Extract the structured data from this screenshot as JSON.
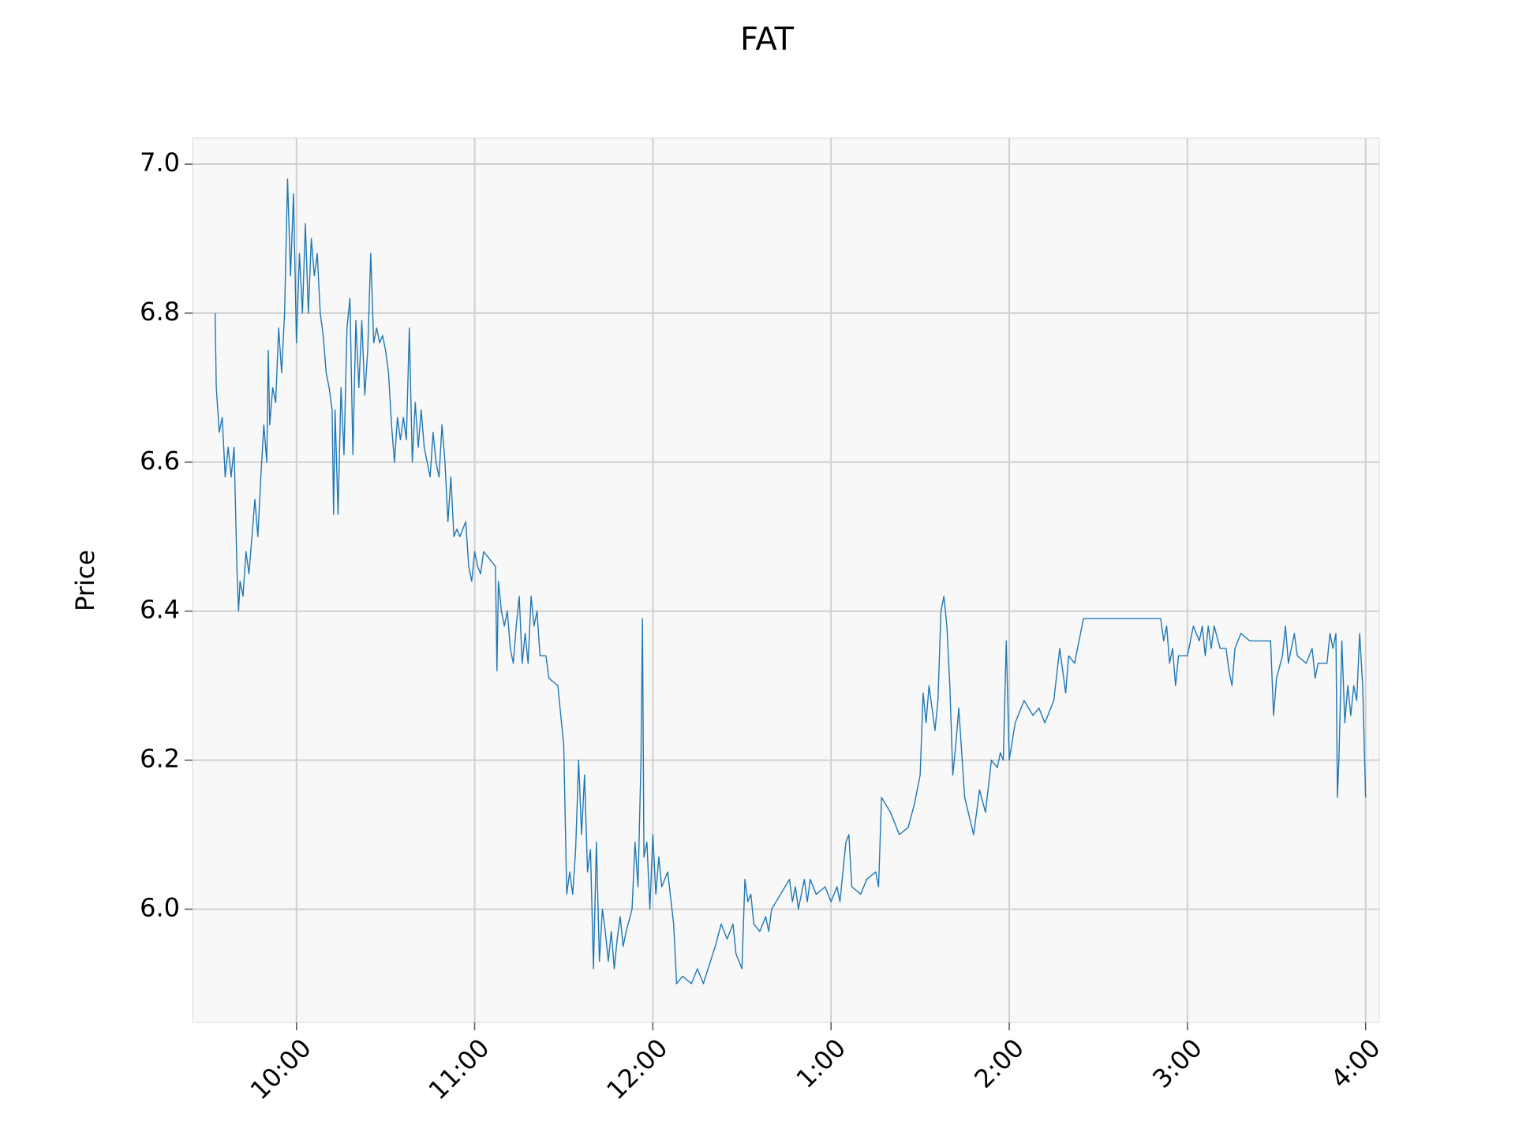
{
  "chart_data": {
    "type": "line",
    "title": "FAT",
    "y_label": "Price",
    "grid": true,
    "xlim": [
      565,
      964.6
    ],
    "ylim": [
      5.848,
      7.035
    ],
    "xticks": [
      {
        "value": 600,
        "label": "10:00"
      },
      {
        "value": 660,
        "label": "11:00"
      },
      {
        "value": 720,
        "label": "12:00"
      },
      {
        "value": 780,
        "label": "1:00"
      },
      {
        "value": 840,
        "label": "2:00"
      },
      {
        "value": 900,
        "label": "3:00"
      },
      {
        "value": 960,
        "label": "4:00"
      }
    ],
    "yticks": [
      {
        "value": 6,
        "label": "6.0"
      },
      6.2,
      6.4,
      6.6,
      6.8,
      {
        "value": 7,
        "label": "7.0"
      }
    ],
    "series": [
      {
        "color": "#1f77b4",
        "x": [
          572.6,
          573,
          574,
          575,
          576,
          577,
          578,
          579,
          580,
          580.5,
          581,
          582,
          583,
          584,
          585,
          586,
          587,
          588,
          589,
          590,
          590.5,
          591,
          592,
          593,
          594,
          595,
          596,
          597,
          598,
          599,
          600,
          601,
          602,
          603,
          604,
          605,
          606,
          607,
          608,
          609,
          610,
          611,
          612,
          612.5,
          613,
          614,
          615,
          616,
          617,
          618,
          619,
          620,
          621,
          622,
          623,
          624,
          625,
          626,
          627,
          628,
          629,
          630,
          631,
          632,
          633,
          634,
          635,
          636,
          637,
          638,
          639,
          640,
          641,
          642,
          643,
          644,
          645,
          646,
          647,
          648,
          649,
          650,
          651,
          652,
          653,
          654,
          655,
          657,
          658,
          659,
          660,
          661,
          662,
          663,
          665,
          667,
          667.5,
          668,
          669,
          670,
          671,
          672,
          673,
          674,
          675,
          676,
          677,
          678,
          679,
          680,
          681,
          682,
          684,
          685,
          688,
          690,
          691,
          692,
          693,
          694,
          695,
          696,
          697,
          698,
          699,
          700,
          701,
          702,
          703,
          704,
          705,
          706,
          707,
          708,
          709,
          710,
          711,
          713,
          714,
          715,
          716,
          716.5,
          717,
          718,
          719,
          720,
          721,
          722,
          723,
          725,
          727,
          728,
          730,
          733,
          735,
          737,
          741,
          743,
          745,
          747,
          748,
          750,
          751,
          752,
          753,
          754,
          756,
          758,
          759,
          760,
          763,
          766,
          767,
          768,
          769,
          771,
          772,
          773,
          775,
          778,
          780,
          782,
          783,
          785,
          786,
          787,
          790,
          792,
          795,
          796,
          797,
          800,
          803,
          806,
          808,
          810,
          811,
          812,
          813,
          815,
          816,
          817,
          818,
          819,
          820,
          821,
          822,
          823,
          825,
          828,
          830,
          832,
          834,
          836,
          837,
          838,
          839,
          840,
          842,
          845,
          848,
          850,
          852,
          855,
          857,
          858,
          859,
          860,
          862,
          863,
          865,
          875,
          885,
          891,
          892,
          893,
          894,
          895,
          896,
          897,
          900,
          902,
          904,
          905,
          906,
          907,
          908,
          909,
          911,
          913,
          914,
          915,
          916,
          918,
          921,
          924,
          928,
          929,
          930,
          932,
          933,
          934,
          936,
          937,
          940,
          942,
          943,
          944,
          947,
          948,
          949,
          950,
          950.5,
          951,
          952,
          953,
          954,
          955,
          956,
          957,
          958,
          959,
          960
        ],
        "values": [
          6.8,
          6.7,
          6.64,
          6.66,
          6.58,
          6.62,
          6.58,
          6.62,
          6.45,
          6.4,
          6.44,
          6.42,
          6.48,
          6.45,
          6.5,
          6.55,
          6.5,
          6.58,
          6.65,
          6.6,
          6.75,
          6.65,
          6.7,
          6.68,
          6.78,
          6.72,
          6.8,
          6.98,
          6.85,
          6.96,
          6.76,
          6.88,
          6.8,
          6.92,
          6.8,
          6.9,
          6.85,
          6.88,
          6.8,
          6.77,
          6.72,
          6.7,
          6.67,
          6.53,
          6.67,
          6.53,
          6.7,
          6.61,
          6.78,
          6.82,
          6.61,
          6.79,
          6.7,
          6.79,
          6.69,
          6.75,
          6.88,
          6.76,
          6.78,
          6.76,
          6.77,
          6.75,
          6.72,
          6.65,
          6.6,
          6.66,
          6.63,
          6.66,
          6.63,
          6.78,
          6.6,
          6.68,
          6.62,
          6.67,
          6.62,
          6.6,
          6.58,
          6.64,
          6.6,
          6.58,
          6.65,
          6.6,
          6.52,
          6.58,
          6.5,
          6.51,
          6.5,
          6.52,
          6.46,
          6.44,
          6.48,
          6.46,
          6.45,
          6.48,
          6.47,
          6.46,
          6.32,
          6.44,
          6.4,
          6.38,
          6.4,
          6.35,
          6.33,
          6.38,
          6.42,
          6.33,
          6.37,
          6.33,
          6.42,
          6.38,
          6.4,
          6.34,
          6.34,
          6.31,
          6.3,
          6.22,
          6.02,
          6.05,
          6.02,
          6.08,
          6.2,
          6.1,
          6.18,
          6.05,
          6.08,
          5.92,
          6.09,
          5.93,
          6.0,
          5.97,
          5.93,
          5.97,
          5.92,
          5.96,
          5.99,
          5.95,
          5.97,
          6.0,
          6.09,
          6.03,
          6.2,
          6.39,
          6.07,
          6.09,
          6.0,
          6.1,
          6.02,
          6.07,
          6.03,
          6.05,
          5.98,
          5.9,
          5.91,
          5.9,
          5.92,
          5.9,
          5.95,
          5.98,
          5.96,
          5.98,
          5.94,
          5.92,
          6.04,
          6.01,
          6.02,
          5.98,
          5.97,
          5.99,
          5.97,
          6.0,
          6.02,
          6.04,
          6.01,
          6.03,
          6.0,
          6.04,
          6.01,
          6.04,
          6.02,
          6.03,
          6.01,
          6.03,
          6.01,
          6.09,
          6.1,
          6.03,
          6.02,
          6.04,
          6.05,
          6.03,
          6.15,
          6.13,
          6.1,
          6.11,
          6.14,
          6.18,
          6.29,
          6.25,
          6.3,
          6.24,
          6.28,
          6.4,
          6.42,
          6.38,
          6.3,
          6.18,
          6.22,
          6.27,
          6.15,
          6.1,
          6.16,
          6.13,
          6.2,
          6.19,
          6.21,
          6.2,
          6.36,
          6.2,
          6.25,
          6.28,
          6.26,
          6.27,
          6.25,
          6.28,
          6.35,
          6.32,
          6.29,
          6.34,
          6.33,
          6.35,
          6.39,
          6.39,
          6.39,
          6.39,
          6.36,
          6.38,
          6.33,
          6.35,
          6.3,
          6.34,
          6.34,
          6.38,
          6.36,
          6.38,
          6.34,
          6.38,
          6.35,
          6.38,
          6.35,
          6.35,
          6.32,
          6.3,
          6.35,
          6.37,
          6.36,
          6.36,
          6.36,
          6.26,
          6.31,
          6.34,
          6.38,
          6.33,
          6.37,
          6.34,
          6.33,
          6.35,
          6.31,
          6.33,
          6.33,
          6.37,
          6.35,
          6.37,
          6.15,
          6.2,
          6.36,
          6.25,
          6.3,
          6.26,
          6.3,
          6.28,
          6.37,
          6.3,
          6.15
        ]
      }
    ]
  }
}
